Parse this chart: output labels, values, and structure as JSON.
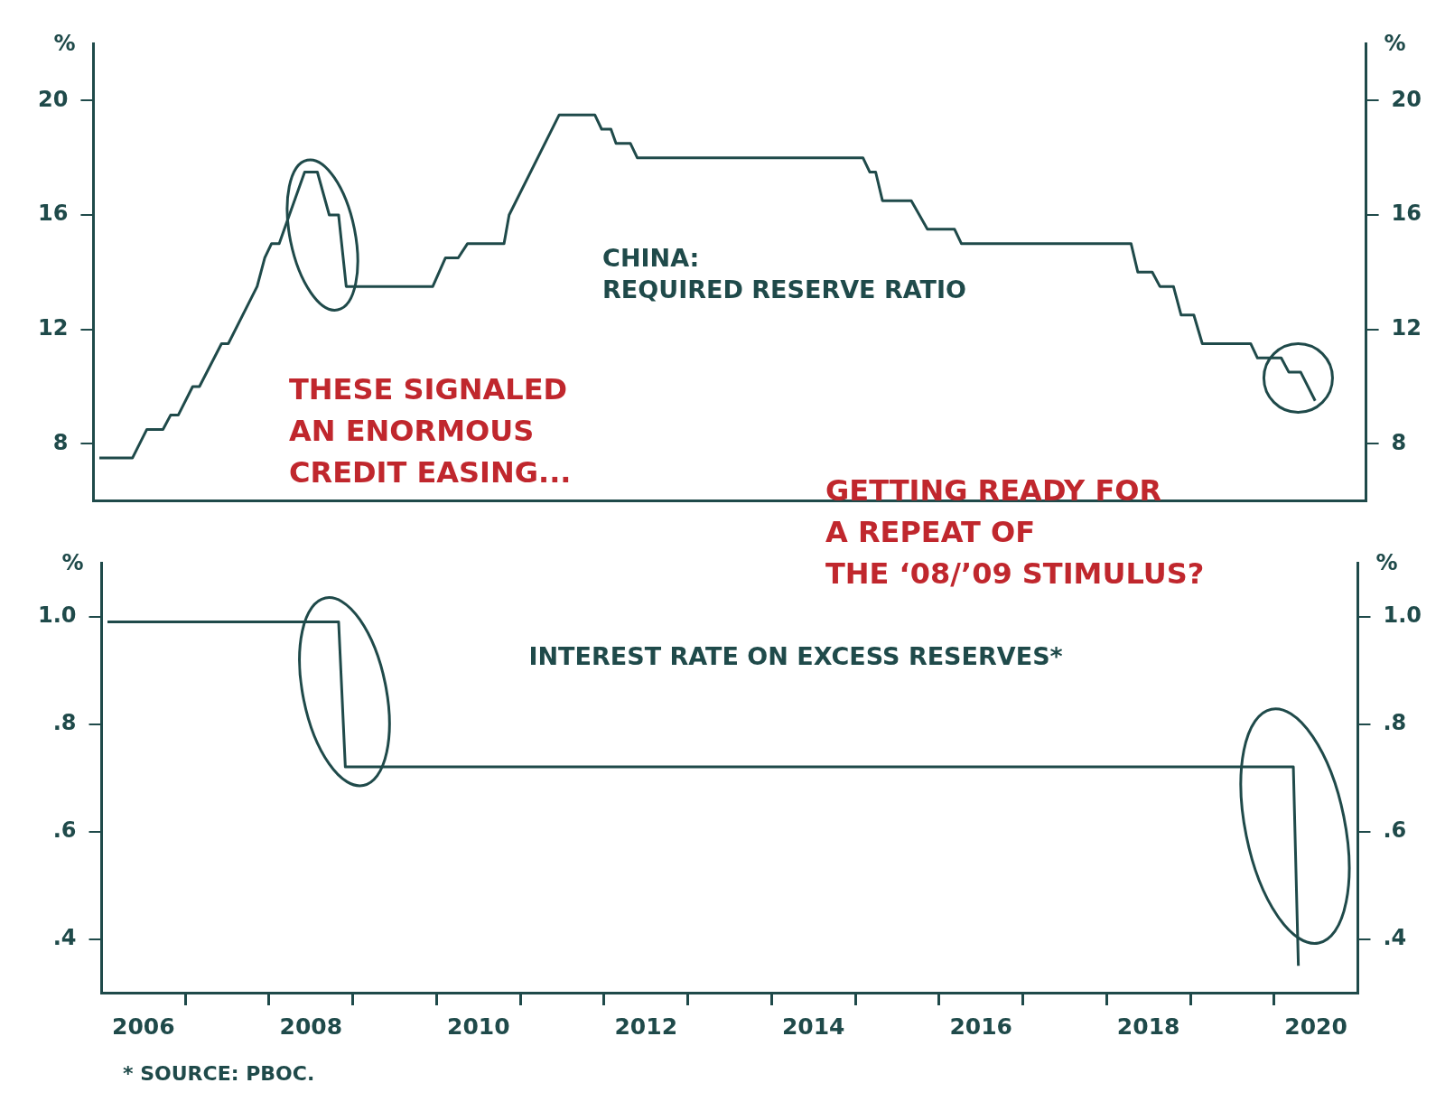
{
  "chart_data": [
    {
      "type": "line",
      "ylabel": "%",
      "y2label": "%",
      "xlim": [
        2006,
        2021
      ],
      "ylim": [
        6,
        22
      ],
      "yticks": [
        8,
        12,
        16,
        20
      ],
      "y2lim": [
        6,
        22
      ],
      "y2ticks": [
        8,
        12,
        16,
        20
      ],
      "tick_labels": "y",
      "grid": false,
      "legend": false,
      "marker": "none",
      "line_style": "solid",
      "annotations": [
        "THESE SIGNALED\nAN ENORMOUS\nCREDIT EASING...",
        "GETTING READY FOR\nA REPEAT OF\nTHE ‘08/’09 STIMULUS?"
      ],
      "series": [
        {
          "name": "CHINA:\nREQUIRED RESERVE RATIO",
          "color": "#1f4a4a",
          "x": [
            2006.07,
            2006.46,
            2006.63,
            2006.82,
            2006.91,
            2007.0,
            2007.17,
            2007.25,
            2007.51,
            2007.59,
            2007.93,
            2008.02,
            2008.1,
            2008.19,
            2008.49,
            2008.64,
            2008.78,
            2008.89,
            2008.98,
            2010.0,
            2010.15,
            2010.3,
            2010.41,
            2010.84,
            2010.9,
            2011.49,
            2011.91,
            2011.99,
            2012.1,
            2012.16,
            2012.33,
            2012.41,
            2015.07,
            2015.15,
            2015.22,
            2015.3,
            2015.64,
            2015.83,
            2016.15,
            2016.23,
            2018.23,
            2018.31,
            2018.48,
            2018.57,
            2018.73,
            2018.82,
            2018.97,
            2019.07,
            2019.64,
            2019.72,
            2020.0,
            2020.09,
            2020.23,
            2020.4
          ],
          "values": [
            7.5,
            7.5,
            8.5,
            8.5,
            9,
            9,
            10,
            10,
            11.5,
            11.5,
            13.5,
            14.5,
            15,
            15,
            17.5,
            17.5,
            16,
            16,
            13.5,
            13.5,
            14.5,
            14.5,
            15,
            15,
            16,
            19.5,
            19.5,
            19,
            19,
            18.5,
            18.5,
            18,
            18,
            17.5,
            17.5,
            16.5,
            16.5,
            15.5,
            15.5,
            15,
            15,
            14,
            14,
            13.5,
            13.5,
            12.5,
            12.5,
            11.5,
            11.5,
            11,
            11,
            10.5,
            10.5,
            9.5
          ]
        }
      ]
    },
    {
      "type": "line",
      "ylabel": "%",
      "y2label": "%",
      "xlim": [
        2006,
        2021
      ],
      "xticks": [
        {
          "value": 2006.5,
          "label": "2006"
        },
        {
          "value": 2007,
          "label": null
        },
        {
          "value": 2008,
          "label": null
        },
        {
          "value": 2008.5,
          "label": "2008"
        },
        {
          "value": 2009,
          "label": null
        },
        {
          "value": 2010,
          "label": null
        },
        {
          "value": 2010.5,
          "label": "2010"
        },
        {
          "value": 2011,
          "label": null
        },
        {
          "value": 2012,
          "label": null
        },
        {
          "value": 2012.5,
          "label": "2012"
        },
        {
          "value": 2013,
          "label": null
        },
        {
          "value": 2014,
          "label": null
        },
        {
          "value": 2014.5,
          "label": "2014"
        },
        {
          "value": 2015,
          "label": null
        },
        {
          "value": 2016,
          "label": null
        },
        {
          "value": 2016.5,
          "label": "2016"
        },
        {
          "value": 2017,
          "label": null
        },
        {
          "value": 2018,
          "label": null
        },
        {
          "value": 2018.5,
          "label": "2018"
        },
        {
          "value": 2019,
          "label": null
        },
        {
          "value": 2020,
          "label": null
        },
        {
          "value": 2020.5,
          "label": "2020"
        }
      ],
      "ylim": [
        0.3,
        1.1
      ],
      "yticks": [
        {
          "value": 0.4,
          "label": ".4"
        },
        {
          "value": 0.6,
          "label": ".6"
        },
        {
          "value": 0.8,
          "label": ".8"
        },
        {
          "value": 1,
          "label": "1.0"
        }
      ],
      "y2lim": [
        0.3,
        1.1
      ],
      "y2ticks": [
        {
          "value": 0.4,
          "label": ".4"
        },
        {
          "value": 0.6,
          "label": ".6"
        },
        {
          "value": 0.8,
          "label": ".8"
        },
        {
          "value": 1,
          "label": "1.0"
        }
      ],
      "grid": false,
      "legend": false,
      "marker": "none",
      "line_style": "solid",
      "annotations": [
        "* SOURCE: PBOC."
      ],
      "series": [
        {
          "name": "INTEREST RATE ON EXCESS RESERVES*",
          "color": "#1f4a4a",
          "x": [
            2006.07,
            2008.83,
            2008.91,
            2020.23,
            2020.29
          ],
          "values": [
            0.99,
            0.99,
            0.72,
            0.72,
            0.35
          ]
        }
      ]
    }
  ]
}
